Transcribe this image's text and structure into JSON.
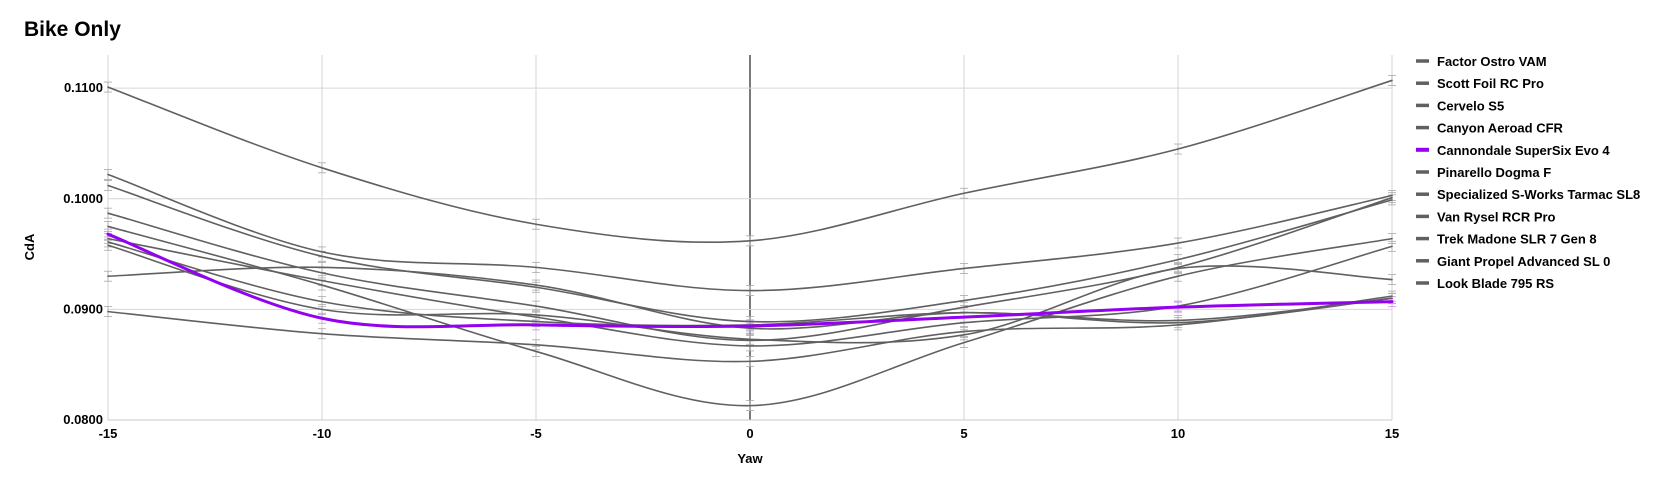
{
  "chart_data": {
    "type": "line",
    "title": "Bike Only",
    "xlabel": "Yaw",
    "ylabel": "CdA",
    "xlim": [
      -15,
      15
    ],
    "ylim": [
      0.08,
      0.113
    ],
    "x_ticks": [
      "-15",
      "-10",
      "-5",
      "0",
      "5",
      "10",
      "15"
    ],
    "y_ticks": [
      "0.0800",
      "0.0900",
      "0.1000",
      "0.1100"
    ],
    "grid": true,
    "legend_position": "right",
    "error_bars": true,
    "x": [
      -15,
      -10,
      -5,
      0,
      5,
      10,
      15
    ],
    "series": [
      {
        "name": "Factor Ostro VAM",
        "color": "#606060",
        "highlight": false,
        "values": [
          0.1101,
          0.1028,
          0.0977,
          0.0962,
          0.1005,
          0.1045,
          0.1107
        ]
      },
      {
        "name": "Scott Foil RC Pro",
        "color": "#606060",
        "highlight": false,
        "values": [
          0.1022,
          0.0952,
          0.0938,
          0.0917,
          0.0937,
          0.096,
          0.1003
        ]
      },
      {
        "name": "Cervelo S5",
        "color": "#606060",
        "highlight": false,
        "values": [
          0.1012,
          0.0948,
          0.092,
          0.0889,
          0.0908,
          0.0945,
          0.0999
        ]
      },
      {
        "name": "Canyon Aeroad CFR",
        "color": "#606060",
        "highlight": false,
        "values": [
          0.0987,
          0.0933,
          0.0903,
          0.0872,
          0.0902,
          0.0938,
          0.1001
        ]
      },
      {
        "name": "Cannondale SuperSix Evo 4",
        "color": "#9400f0",
        "highlight": true,
        "values": [
          0.0968,
          0.0892,
          0.0886,
          0.0885,
          0.0893,
          0.0902,
          0.0907
        ]
      },
      {
        "name": "Pinarello Dogma F",
        "color": "#606060",
        "highlight": false,
        "values": [
          0.0964,
          0.0926,
          0.0893,
          0.0867,
          0.0888,
          0.0903,
          0.0957
        ]
      },
      {
        "name": "Specialized S-Works Tarmac SL8",
        "color": "#606060",
        "highlight": false,
        "values": [
          0.0961,
          0.0907,
          0.0889,
          0.0886,
          0.0897,
          0.089,
          0.091
        ]
      },
      {
        "name": "Van Rysel RCR Pro",
        "color": "#606060",
        "highlight": false,
        "values": [
          0.0958,
          0.09,
          0.0895,
          0.0873,
          0.0877,
          0.0937,
          0.0927
        ]
      },
      {
        "name": "Trek Madone SLR 7 Gen 8",
        "color": "#606060",
        "highlight": false,
        "values": [
          0.0975,
          0.0922,
          0.0862,
          0.0813,
          0.087,
          0.093,
          0.0964
        ]
      },
      {
        "name": "Giant Propel Advanced SL 0",
        "color": "#606060",
        "highlight": false,
        "values": [
          0.093,
          0.0938,
          0.0922,
          0.0883,
          0.0897,
          0.0888,
          0.091
        ]
      },
      {
        "name": "Look Blade 795 RS",
        "color": "#606060",
        "highlight": false,
        "values": [
          0.0898,
          0.0878,
          0.0868,
          0.0853,
          0.088,
          0.0886,
          0.0912
        ]
      }
    ]
  }
}
